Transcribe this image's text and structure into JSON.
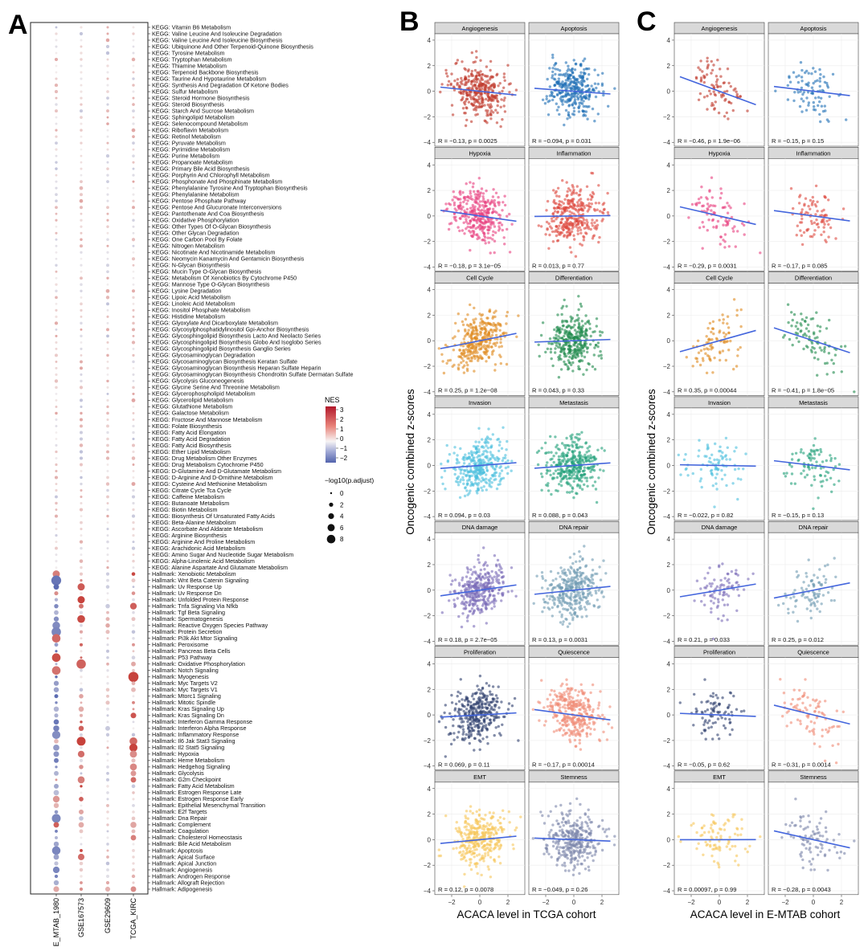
{
  "panel_labels": {
    "a": "A",
    "b": "B",
    "c": "C"
  },
  "colors": {
    "red": "#c7423c",
    "blue": "#5b6bb1",
    "mid": "#f3eeee",
    "line": "#4466dd",
    "strip": "#d9d9d9",
    "grid": "#ececec"
  },
  "panel_a": {
    "columns": [
      "E_MTAB_1980",
      "GSE167573",
      "GSE29609",
      "TCGA_KIRC"
    ],
    "pathways": [
      "KEGG: Vitamin B6 Metabolism",
      "KEGG: Valine Leucine And Isoleucine Degradation",
      "KEGG: Valine Leucine And Isoleucine Biosynthesis",
      "KEGG: Ubiquinone And Other Terpenoid-Quinone Biosynthesis",
      "KEGG: Tyrosine Metabolism",
      "KEGG: Tryptophan Metabolism",
      "KEGG: Thiamine Metabolism",
      "KEGG: Terpenoid Backbone Biosynthesis",
      "KEGG: Taurine And Hypotaurine Metabolism",
      "KEGG: Synthesis And Degradation Of Ketone Bodies",
      "KEGG: Sulfur Metabolism",
      "KEGG: Steroid Hormone Biosynthesis",
      "KEGG: Steroid Biosynthesis",
      "KEGG: Starch And Sucrose Metabolism",
      "KEGG: Sphingolipid Metabolism",
      "KEGG: Selenocompound Metabolism",
      "KEGG: Riboflavin Metabolism",
      "KEGG: Retinol Metabolism",
      "KEGG: Pyruvate Metabolism",
      "KEGG: Pyrimidine Metabolism",
      "KEGG: Purine Metabolism",
      "KEGG: Propanoate Metabolism",
      "KEGG: Primary Bile Acid Biosynthesis",
      "KEGG: Porphyrin And Chlorophyll Metabolism",
      "KEGG: Phosphonate And Phosphinate Metabolism",
      "KEGG: Phenylalanine Tyrosine And Tryptophan Biosynthesis",
      "KEGG: Phenylalanine Metabolism",
      "KEGG: Pentose Phosphate Pathway",
      "KEGG: Pentose And Glucuronate Interconversions",
      "KEGG: Pantothenate And Coa Biosynthesis",
      "KEGG: Oxidative Phosphorylation",
      "KEGG: Other Types Of O-Glycan Biosynthesis",
      "KEGG: Other Glycan Degradation",
      "KEGG: One Carbon Pool By Folate",
      "KEGG: Nitrogen Metabolism",
      "KEGG: Nicotinate And Nicotinamide Metabolism",
      "KEGG: Neomycin Kanamycin And Gentamicin Biosynthesis",
      "KEGG: N-Glycan Biosynthesis",
      "KEGG: Mucin Type O-Glycan Biosynthesis",
      "KEGG: Metabolism Of Xenobiotics By Cytochrome P450",
      "KEGG: Mannose Type O-Glycan Biosynthesis",
      "KEGG: Lysine Degradation",
      "KEGG: Lipoic Acid Metabolism",
      "KEGG: Linoleic Acid Metabolism",
      "KEGG: Inositol Phosphate Metabolism",
      "KEGG: Histidine Metabolism",
      "KEGG: Glyoxylate And Dicarboxylate Metabolism",
      "KEGG: Glycosylphosphatidylinositol Gpi-Anchor Biosynthesis",
      "KEGG: Glycosphingolipid Biosynthesis Lacto And Neolacto Series",
      "KEGG: Glycosphingolipid Biosynthesis Globo And Isoglobo Series",
      "KEGG: Glycosphingolipid Biosynthesis Ganglio Series",
      "KEGG: Glycosaminoglycan Degradation",
      "KEGG: Glycosaminoglycan Biosynthesis Keratan Sulfate",
      "KEGG: Glycosaminoglycan Biosynthesis Heparan Sulfate Heparin",
      "KEGG: Glycosaminoglycan Biosynthesis Chondroitin Sulfate Dermatan Sulfate",
      "KEGG: Glycolysis Gluconeogenesis",
      "KEGG: Glycine Serine And Threonine Metabolism",
      "KEGG: Glycerophospholipid Metabolism",
      "KEGG: Glycerolipid Metabolism",
      "KEGG: Glutathione Metabolism",
      "KEGG: Galactose Metabolism",
      "KEGG: Fructose And Mannose Metabolism",
      "KEGG: Folate Biosynthesis",
      "KEGG: Fatty Acid Elongation",
      "KEGG: Fatty Acid Degradation",
      "KEGG: Fatty Acid Biosynthesis",
      "KEGG: Ether Lipid Metabolism",
      "KEGG: Drug Metabolism Other Enzymes",
      "KEGG: Drug Metabolism Cytochrome P450",
      "KEGG: D-Glutamine And D-Glutamate Metabolism",
      "KEGG: D-Arginine And D-Ornithine Metabolism",
      "KEGG: Cysteine And Methionine Metabolism",
      "KEGG: Citrate Cycle Tca Cycle",
      "KEGG: Caffeine Metabolism",
      "KEGG: Butanoate Metabolism",
      "KEGG: Biotin Metabolism",
      "KEGG: Biosynthesis Of Unsaturated Fatty Acids",
      "KEGG: Beta-Alanine Metabolism",
      "KEGG: Ascorbate And Aldarate Metabolism",
      "KEGG: Arginine Biosynthesis",
      "KEGG: Arginine And Proline Metabolism",
      "KEGG: Arachidonic Acid Metabolism",
      "KEGG: Amino Sugar And Nucleotide Sugar Metabolism",
      "KEGG: Alpha-Linolenic Acid Metabolism",
      "KEGG: Alanine Aspartate And Glutamate Metabolism",
      "Hallmark: Xenobiotic Metabolism",
      "Hallmark: Wnt Beta Catenin Signaling",
      "Hallmark: Uv Response Up",
      "Hallmark: Uv Response Dn",
      "Hallmark: Unfolded Protein Response",
      "Hallmark: Tnfa Signaling Via Nfkb",
      "Hallmark: Tgf Beta Signaling",
      "Hallmark: Spermatogenesis",
      "Hallmark: Reactive Oxygen Species Pathway",
      "Hallmark: Protein Secretion",
      "Hallmark: Pi3k Akt Mtor Signaling",
      "Hallmark: Peroxisome",
      "Hallmark: Pancreas Beta Cells",
      "Hallmark: P53 Pathway",
      "Hallmark: Oxidative Phosphorylation",
      "Hallmark: Notch Signaling",
      "Hallmark: Myogenesis",
      "Hallmark: Myc Targets V2",
      "Hallmark: Myc Targets V1",
      "Hallmark: Mtorc1 Signaling",
      "Hallmark: Mitotic Spindle",
      "Hallmark: Kras Signaling Up",
      "Hallmark: Kras Signaling Dn",
      "Hallmark: Interferon Gamma Response",
      "Hallmark: Interferon Alpha Response",
      "Hallmark: Inflammatory Response",
      "Hallmark: Il6 Jak Stat3 Signaling",
      "Hallmark: Il2 Stat5 Signaling",
      "Hallmark: Hypoxia",
      "Hallmark: Heme Metabolism",
      "Hallmark: Hedgehog Signaling",
      "Hallmark: Glycolysis",
      "Hallmark: G2m Checkpoint",
      "Hallmark: Fatty Acid Metabolism",
      "Hallmark: Estrogen Response Late",
      "Hallmark: Estrogen Response Early",
      "Hallmark: Epithelial Mesenchymal Transition",
      "Hallmark: E2f Targets",
      "Hallmark: Dna Repair",
      "Hallmark: Complement",
      "Hallmark: Coagulation",
      "Hallmark: Cholesterol Homeostasis",
      "Hallmark: Bile Acid Metabolism",
      "Hallmark: Apoptosis",
      "Hallmark: Apical Surface",
      "Hallmark: Apical Junction",
      "Hallmark: Angiogenesis",
      "Hallmark: Androgen Response",
      "Hallmark: Allograft Rejection",
      "Hallmark: Adipogenesis"
    ],
    "legend": {
      "nes_title": "NES",
      "nes_ticks": [
        "3",
        "2",
        "1",
        "0",
        "−1",
        "−2"
      ],
      "size_title": "−log10(p.adjust)",
      "size_ticks": [
        "0",
        "2",
        "4",
        "6",
        "8"
      ]
    }
  },
  "panel_b": {
    "xlabel": "ACACA level in TCGA cohort",
    "ylabel": "Oncogenic combined z-scores",
    "x_ticks": [
      "−2",
      "0",
      "2"
    ],
    "y_ticks": [
      "4",
      "2",
      "0",
      "−2",
      "−4"
    ],
    "facets": [
      {
        "title": "Angiogenesis",
        "stat": "R = −0.13, p = 0.0025",
        "r": -0.13,
        "color": "#c0392b"
      },
      {
        "title": "Apoptosis",
        "stat": "R = −0.094, p = 0.031",
        "r": -0.094,
        "color": "#1f6fb5"
      },
      {
        "title": "Hypoxia",
        "stat": "R = −0.18, p = 3.1e−05",
        "r": -0.18,
        "color": "#e8407f"
      },
      {
        "title": "Inflammation",
        "stat": "R = 0.013, p = 0.77",
        "r": 0.013,
        "color": "#de4a3f"
      },
      {
        "title": "Cell Cycle",
        "stat": "R = 0.25, p = 1.2e−08",
        "r": 0.25,
        "color": "#e08a1f"
      },
      {
        "title": "Differentiation",
        "stat": "R = 0.043, p = 0.33",
        "r": 0.043,
        "color": "#1f8a4c"
      },
      {
        "title": "Invasion",
        "stat": "R = 0.094, p = 0.03",
        "r": 0.094,
        "color": "#4cc0dd"
      },
      {
        "title": "Metastasis",
        "stat": "R = 0.088, p = 0.043",
        "r": 0.088,
        "color": "#22a07a"
      },
      {
        "title": "DNA damage",
        "stat": "R = 0.18, p = 2.7e−05",
        "r": 0.18,
        "color": "#7a6bb8"
      },
      {
        "title": "DNA repair",
        "stat": "R = 0.13, p = 0.0031",
        "r": 0.13,
        "color": "#6f9bb2"
      },
      {
        "title": "Proliferation",
        "stat": "R = 0.069, p = 0.11",
        "r": 0.069,
        "color": "#2e3f6e"
      },
      {
        "title": "Quiescence",
        "stat": "R = −0.17, p = 0.00014",
        "r": -0.17,
        "color": "#f08a74"
      },
      {
        "title": "EMT",
        "stat": "R = 0.12, p = 0.0078",
        "r": 0.12,
        "color": "#f7c75a"
      },
      {
        "title": "Stemness",
        "stat": "R = −0.049, p = 0.26",
        "r": -0.049,
        "color": "#7c86aa"
      }
    ]
  },
  "panel_c": {
    "xlabel": "ACACA level in E-MTAB cohort",
    "ylabel": "Oncogenic combined z-scores",
    "x_ticks": [
      "−2",
      "0",
      "2"
    ],
    "y_ticks": [
      "4",
      "2",
      "0",
      "−2",
      "−4"
    ],
    "facets": [
      {
        "title": "Angiogenesis",
        "stat": "R = −0.46, p = 1.9e−06",
        "r": -0.46,
        "color": "#c0392b"
      },
      {
        "title": "Apoptosis",
        "stat": "R = −0.15, p = 0.15",
        "r": -0.15,
        "color": "#1f6fb5"
      },
      {
        "title": "Hypoxia",
        "stat": "R = −0.29, p = 0.0031",
        "r": -0.29,
        "color": "#e8407f"
      },
      {
        "title": "Inflammation",
        "stat": "R = −0.17, p = 0.085",
        "r": -0.17,
        "color": "#de4a3f"
      },
      {
        "title": "Cell Cycle",
        "stat": "R = 0.35, p = 0.00044",
        "r": 0.35,
        "color": "#e08a1f"
      },
      {
        "title": "Differentiation",
        "stat": "R = −0.41, p = 1.8e−05",
        "r": -0.41,
        "color": "#1f8a4c"
      },
      {
        "title": "Invasion",
        "stat": "R = −0.022, p = 0.82",
        "r": -0.022,
        "color": "#4cc0dd"
      },
      {
        "title": "Metastasis",
        "stat": "R = −0.15, p = 0.13",
        "r": -0.15,
        "color": "#22a07a"
      },
      {
        "title": "DNA damage",
        "stat": "R = 0.21, p = 0.033",
        "r": 0.21,
        "color": "#7a6bb8"
      },
      {
        "title": "DNA repair",
        "stat": "R = 0.25, p = 0.012",
        "r": 0.25,
        "color": "#6f9bb2"
      },
      {
        "title": "Proliferation",
        "stat": "R = −0.05, p = 0.62",
        "r": -0.05,
        "color": "#2e3f6e"
      },
      {
        "title": "Quiescence",
        "stat": "R = −0.31, p = 0.0014",
        "r": -0.31,
        "color": "#f08a74"
      },
      {
        "title": "EMT",
        "stat": "R = 0.00097, p = 0.99",
        "r": 0.00097,
        "color": "#f7c75a"
      },
      {
        "title": "Stemness",
        "stat": "R = −0.28, p = 0.0043",
        "r": -0.28,
        "color": "#7c86aa"
      }
    ]
  }
}
